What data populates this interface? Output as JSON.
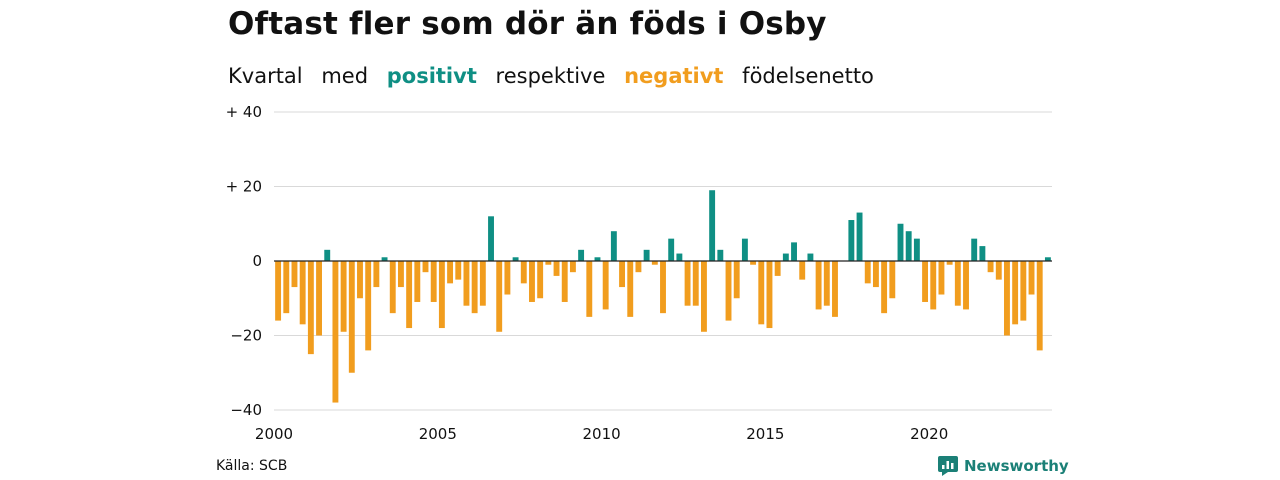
{
  "chart_data": {
    "type": "bar",
    "title": "Oftast fler som dör än föds i Osby",
    "subtitle": {
      "parts": [
        "Kvartal",
        "med",
        "positivt",
        "respektive",
        "negativt",
        "födelsenetto"
      ]
    },
    "ylim": [
      -40,
      40
    ],
    "y_ticks": [
      40,
      20,
      0,
      -20,
      -40
    ],
    "y_tick_labels": [
      "+ 40",
      "+ 20",
      "0",
      "−20",
      "−40"
    ],
    "x_tick_labels": [
      "2000",
      "2005",
      "2010",
      "2015",
      "2020"
    ],
    "x_tick_years": [
      2000,
      2005,
      2010,
      2015,
      2020
    ],
    "start_year": 2000,
    "grid": true,
    "colors": {
      "positive": "#0f8f84",
      "negative": "#f19d1e",
      "grid": "#d9d9d9",
      "zero": "#222222"
    },
    "values": [
      -16,
      -14,
      -7,
      -17,
      -25,
      -20,
      3,
      -38,
      -19,
      -30,
      -10,
      -24,
      -7,
      1,
      -14,
      -7,
      -18,
      -11,
      -3,
      -11,
      -18,
      -6,
      -5,
      -12,
      -14,
      -12,
      12,
      -19,
      -9,
      1,
      -6,
      -11,
      -10,
      -1,
      -4,
      -11,
      -3,
      3,
      -15,
      1,
      -13,
      8,
      -7,
      -15,
      -3,
      3,
      -1,
      -14,
      6,
      2,
      -12,
      -12,
      -19,
      19,
      3,
      -16,
      -10,
      6,
      -1,
      -17,
      -18,
      -4,
      2,
      5,
      -5,
      2,
      -13,
      -12,
      -15,
      0,
      11,
      13,
      -6,
      -7,
      -14,
      -10,
      10,
      8,
      6,
      -11,
      -13,
      -9,
      -1,
      -12,
      -13,
      6,
      4,
      -3,
      -5,
      -20,
      -17,
      -16,
      -9,
      -24,
      1
    ],
    "source": "Källa: SCB"
  },
  "brand": {
    "name": "Newsworthy",
    "icon": "newsworthy-logo-icon"
  }
}
